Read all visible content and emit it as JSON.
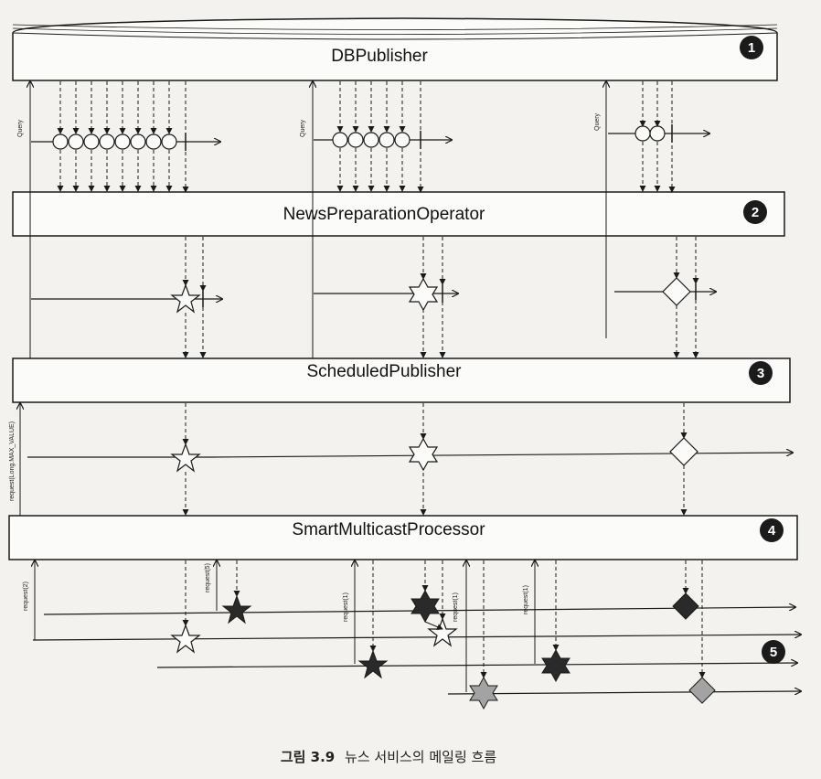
{
  "stages": [
    {
      "label": "DBPublisher",
      "number": "1"
    },
    {
      "label": "NewsPreparationOperator",
      "number": "2"
    },
    {
      "label": "ScheduledPublisher",
      "number": "3"
    },
    {
      "label": "SmartMulticastProcessor",
      "number": "4"
    }
  ],
  "subscriber_marker": "5",
  "query_label": "Query",
  "request_max_label": "request(Long.MAX_VALUE)",
  "request_labels": [
    "request(2)",
    "request(5)",
    "request(1)",
    "request(1)",
    "request(1)"
  ],
  "caption_prefix": "그림 3.9",
  "caption_text": "뉴스 서비스의 메일링 흐름",
  "colors": {
    "line": "#1a1a1a",
    "badge": "#1b1b1b",
    "star_gray": "#a3a3a3",
    "bar_fill": "#fbfbf9"
  }
}
